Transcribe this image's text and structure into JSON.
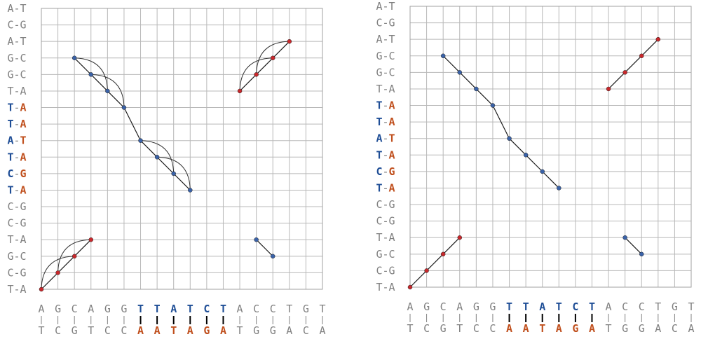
{
  "colors": {
    "gray": "#808080",
    "blue": "#1f4e96",
    "orange": "#c0501e",
    "dot_blue": "#3a62a8",
    "dot_red": "#c8282c",
    "line": "#1a1a1a",
    "arc": "#333333"
  },
  "row_labels": [
    {
      "t": "A",
      "b": "T",
      "hl": false
    },
    {
      "t": "C",
      "b": "G",
      "hl": false
    },
    {
      "t": "A",
      "b": "T",
      "hl": false
    },
    {
      "t": "G",
      "b": "C",
      "hl": false
    },
    {
      "t": "G",
      "b": "C",
      "hl": false
    },
    {
      "t": "T",
      "b": "A",
      "hl": false
    },
    {
      "t": "T",
      "b": "A",
      "hl": true
    },
    {
      "t": "T",
      "b": "A",
      "hl": true
    },
    {
      "t": "A",
      "b": "T",
      "hl": true
    },
    {
      "t": "T",
      "b": "A",
      "hl": true
    },
    {
      "t": "C",
      "b": "G",
      "hl": true
    },
    {
      "t": "T",
      "b": "A",
      "hl": true
    },
    {
      "t": "C",
      "b": "G",
      "hl": false
    },
    {
      "t": "C",
      "b": "G",
      "hl": false
    },
    {
      "t": "T",
      "b": "A",
      "hl": false
    },
    {
      "t": "G",
      "b": "C",
      "hl": false
    },
    {
      "t": "C",
      "b": "G",
      "hl": false
    },
    {
      "t": "T",
      "b": "A",
      "hl": false
    }
  ],
  "col_labels": [
    {
      "t": "A",
      "b": "T",
      "hl": false
    },
    {
      "t": "G",
      "b": "C",
      "hl": false
    },
    {
      "t": "C",
      "b": "G",
      "hl": false
    },
    {
      "t": "A",
      "b": "T",
      "hl": false
    },
    {
      "t": "G",
      "b": "C",
      "hl": false
    },
    {
      "t": "G",
      "b": "C",
      "hl": false
    },
    {
      "t": "T",
      "b": "A",
      "hl": true
    },
    {
      "t": "T",
      "b": "A",
      "hl": true
    },
    {
      "t": "A",
      "b": "T",
      "hl": true
    },
    {
      "t": "T",
      "b": "A",
      "hl": true
    },
    {
      "t": "C",
      "b": "G",
      "hl": true
    },
    {
      "t": "T",
      "b": "A",
      "hl": true
    },
    {
      "t": "A",
      "b": "T",
      "hl": false
    },
    {
      "t": "C",
      "b": "G",
      "hl": false
    },
    {
      "t": "C",
      "b": "G",
      "hl": false
    },
    {
      "t": "T",
      "b": "A",
      "hl": false
    },
    {
      "t": "G",
      "b": "C",
      "hl": false
    },
    {
      "t": "T",
      "b": "A",
      "hl": false
    }
  ],
  "segments": [
    {
      "color": "red",
      "points": [
        [
          0,
          0
        ],
        [
          1,
          1
        ],
        [
          2,
          2
        ],
        [
          3,
          3
        ]
      ]
    },
    {
      "color": "blue",
      "points": [
        [
          2,
          14
        ],
        [
          3,
          13
        ],
        [
          4,
          12
        ],
        [
          5,
          11
        ]
      ]
    },
    {
      "color": "blue",
      "points": [
        [
          6,
          9
        ],
        [
          7,
          8
        ],
        [
          8,
          7
        ],
        [
          9,
          6
        ]
      ]
    },
    {
      "color": "red",
      "points": [
        [
          12,
          12
        ],
        [
          13,
          13
        ],
        [
          14,
          14
        ],
        [
          15,
          15
        ]
      ]
    },
    {
      "color": "blue",
      "points": [
        [
          13,
          3
        ],
        [
          14,
          2
        ]
      ]
    }
  ],
  "links": [
    {
      "from": [
        5,
        11
      ],
      "to": [
        6,
        9
      ]
    }
  ],
  "panels": [
    {
      "name": "left",
      "show_arcs": true
    },
    {
      "name": "right",
      "show_arcs": false
    }
  ]
}
